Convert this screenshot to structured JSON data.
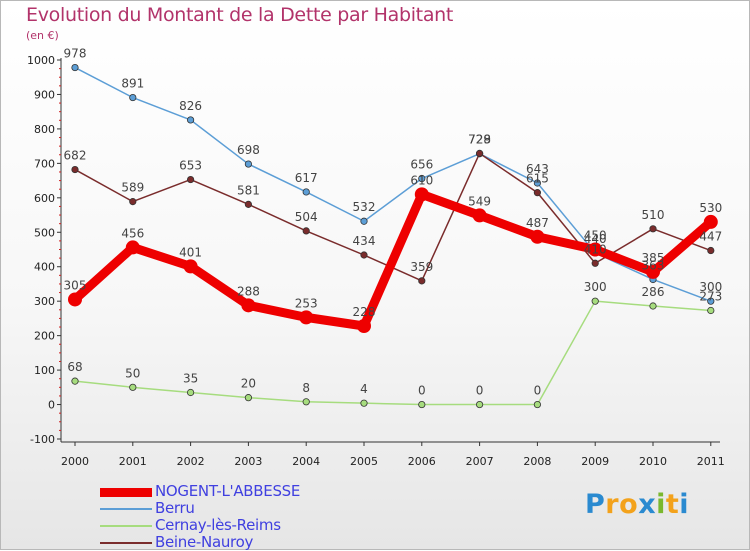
{
  "title": "Evolution du Montant de la Dette par Habitant",
  "subtitle": "(en €)",
  "logo": {
    "text": "Proxiti",
    "letters": [
      "P",
      "r",
      "o",
      "x",
      "i",
      "t",
      "i"
    ],
    "colors": [
      "#2a8ad0",
      "#f3a21b",
      "#f3a21b",
      "#2a8ad0",
      "#7ab82e",
      "#f3a21b",
      "#2a8ad0"
    ]
  },
  "chart_data": {
    "type": "line",
    "x": [
      "2000",
      "2001",
      "2002",
      "2003",
      "2004",
      "2005",
      "2006",
      "2007",
      "2008",
      "2009",
      "2010",
      "2011"
    ],
    "y_ticks": [
      "-100",
      "0",
      "100",
      "200",
      "300",
      "400",
      "500",
      "600",
      "700",
      "800",
      "900",
      "1000"
    ],
    "ylim": [
      -100,
      1000
    ],
    "grid": false,
    "legend_position": "bottom-left",
    "series": [
      {
        "name": "NOGENT-L'ABBESSE",
        "color": "#ee0000",
        "values": [
          305,
          456,
          401,
          288,
          253,
          228,
          610,
          549,
          487,
          450,
          385,
          530
        ],
        "labels": [
          "305",
          "456",
          "401",
          "288",
          "253",
          "228",
          "610",
          "549",
          "487",
          "450",
          "385",
          "530"
        ]
      },
      {
        "name": "Berru",
        "color": "#5c9ed6",
        "values": [
          978,
          891,
          826,
          698,
          617,
          532,
          656,
          728,
          643,
          440,
          363,
          300
        ],
        "labels": [
          "978",
          "891",
          "826",
          "698",
          "617",
          "532",
          "656",
          "728",
          "643",
          "440",
          "363",
          "300"
        ]
      },
      {
        "name": "Cernay-lès-Reims",
        "color": "#a6dc7e",
        "values": [
          68,
          50,
          35,
          20,
          8,
          4,
          0,
          0,
          0,
          300,
          286,
          273
        ],
        "labels": [
          "68",
          "50",
          "35",
          "20",
          "8",
          "4",
          "0",
          "0",
          "0",
          "300",
          "286",
          "273"
        ]
      },
      {
        "name": "Beine-Nauroy",
        "color": "#7a2c2c",
        "values": [
          682,
          589,
          653,
          581,
          504,
          434,
          359,
          729,
          615,
          410,
          510,
          447
        ],
        "labels": [
          "682",
          "589",
          "653",
          "581",
          "504",
          "434",
          "359",
          "729",
          "615",
          "410",
          "510",
          "447"
        ]
      }
    ]
  }
}
